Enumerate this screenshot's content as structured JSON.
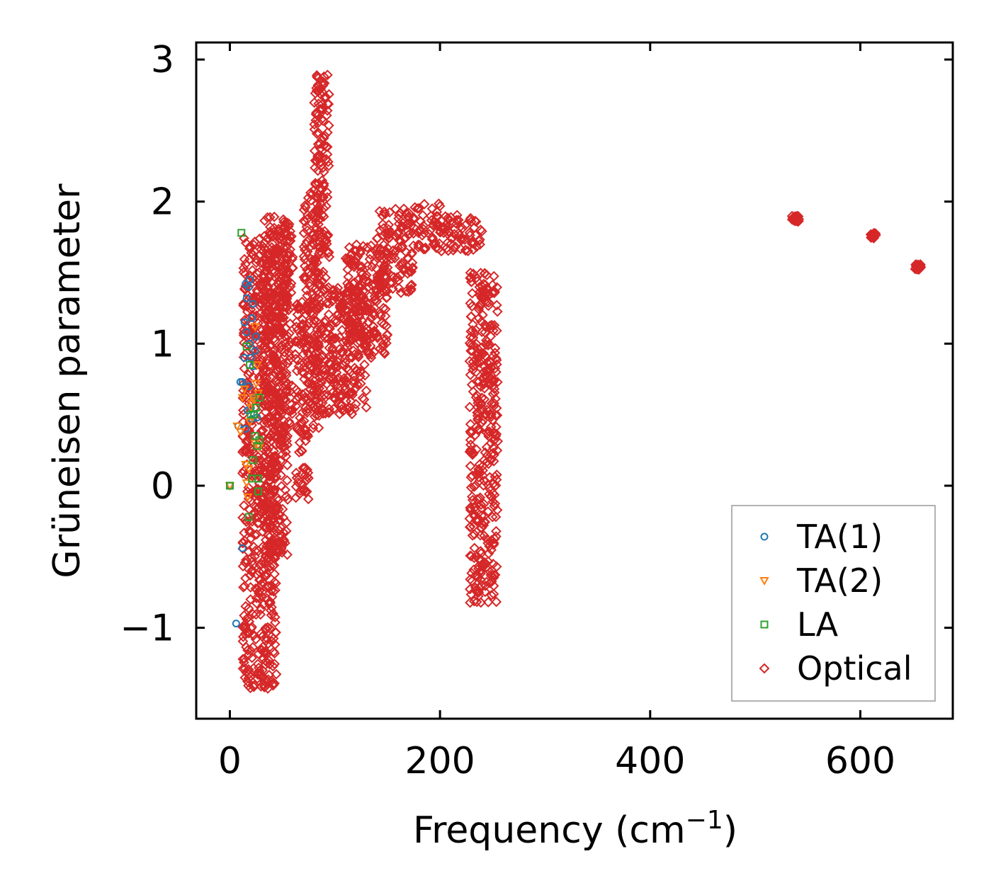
{
  "chart_data": {
    "type": "scatter",
    "title": "",
    "xlabel": "Frequency (cm",
    "xlabel_sup": "−1",
    "xlabel_close": ")",
    "ylabel": "Grüneisen parameter",
    "xlim": [
      -32,
      688
    ],
    "ylim": [
      -1.64,
      3.12
    ],
    "xticks": [
      0,
      200,
      400,
      600
    ],
    "xtick_labels": [
      "0",
      "200",
      "400",
      "600"
    ],
    "yticks": [
      -1,
      0,
      1,
      2,
      3
    ],
    "ytick_labels": [
      "−1",
      "0",
      "1",
      "2",
      "3"
    ],
    "grid": false,
    "legend_position": "bottom-right",
    "series": [
      {
        "name": "TA(1)",
        "marker": "circle",
        "color": "#1f77b4",
        "points": [
          [
            0,
            0
          ],
          [
            6,
            -0.97
          ],
          [
            8,
            0.42
          ],
          [
            10,
            0.73
          ],
          [
            12,
            0.73
          ],
          [
            12,
            -0.44
          ],
          [
            14,
            1.15
          ],
          [
            14,
            0.9
          ],
          [
            15,
            1.42
          ],
          [
            15,
            0.4
          ],
          [
            16,
            1.32
          ],
          [
            16,
            1.08
          ],
          [
            17,
            0.53
          ],
          [
            18,
            1.4
          ],
          [
            18,
            0.7
          ],
          [
            19,
            1.45
          ],
          [
            19,
            1.0
          ],
          [
            20,
            0.9
          ],
          [
            20,
            0.55
          ],
          [
            21,
            1.18
          ],
          [
            21,
            0.47
          ],
          [
            22,
            0.84
          ],
          [
            22,
            1.28
          ],
          [
            23,
            0.5
          ],
          [
            24,
            0.95
          ],
          [
            24,
            0.62
          ],
          [
            25,
            1.05
          ],
          [
            26,
            0.48
          ]
        ]
      },
      {
        "name": "TA(2)",
        "marker": "triangle",
        "color": "#ff7f0e",
        "points": [
          [
            0,
            0
          ],
          [
            7,
            0.42
          ],
          [
            10,
            0.38
          ],
          [
            12,
            0.62
          ],
          [
            14,
            0.68
          ],
          [
            15,
            0.15
          ],
          [
            16,
            0.02
          ],
          [
            17,
            -0.08
          ],
          [
            18,
            0.12
          ],
          [
            19,
            0.45
          ],
          [
            20,
            0.55
          ],
          [
            21,
            0.58
          ],
          [
            22,
            0.62
          ],
          [
            23,
            0.6
          ],
          [
            24,
            1.12
          ],
          [
            24,
            0.3
          ],
          [
            25,
            0.72
          ],
          [
            26,
            0.85
          ],
          [
            27,
            0.65
          ],
          [
            28,
            0.27
          ]
        ]
      },
      {
        "name": "LA",
        "marker": "square",
        "color": "#2ca02c",
        "points": [
          [
            0,
            0
          ],
          [
            11,
            1.78
          ],
          [
            16,
            0.98
          ],
          [
            18,
            -0.22
          ],
          [
            19,
            0.85
          ],
          [
            20,
            0.5
          ],
          [
            21,
            0.05
          ],
          [
            22,
            0.18
          ],
          [
            23,
            0.5
          ],
          [
            24,
            0.35
          ],
          [
            25,
            0.55
          ],
          [
            26,
            0.28
          ],
          [
            27,
            0.05
          ],
          [
            27,
            -0.04
          ],
          [
            28,
            0.62
          ],
          [
            28,
            0.32
          ]
        ]
      },
      {
        "name": "Optical",
        "marker": "diamond",
        "color": "#d62728",
        "points": [],
        "bands": [
          {
            "x": [
              12,
              45
            ],
            "y": [
              -1.43,
              1.77
            ]
          },
          {
            "x": [
              32,
              55
            ],
            "y": [
              -0.5,
              1.9
            ]
          },
          {
            "x": [
              45,
              60
            ],
            "y": [
              0.4,
              1.85
            ]
          },
          {
            "x": [
              62,
              75
            ],
            "y": [
              -0.1,
              1.3
            ]
          },
          {
            "x": [
              70,
              85
            ],
            "y": [
              0.4,
              2.1
            ]
          },
          {
            "x": [
              80,
              95
            ],
            "y": [
              0.5,
              2.9
            ]
          },
          {
            "x": [
              95,
              130
            ],
            "y": [
              0.5,
              1.4
            ]
          },
          {
            "x": [
              110,
              150
            ],
            "y": [
              0.9,
              1.7
            ]
          },
          {
            "x": [
              140,
              175
            ],
            "y": [
              1.35,
              1.95
            ]
          },
          {
            "x": [
              175,
              200
            ],
            "y": [
              1.65,
              1.99
            ]
          },
          {
            "x": [
              200,
              240
            ],
            "y": [
              1.65,
              1.92
            ]
          },
          {
            "x": [
              228,
              255
            ],
            "y": [
              -0.83,
              1.5
            ]
          },
          {
            "x": [
              535,
              542
            ],
            "y": [
              1.86,
              1.9
            ]
          },
          {
            "x": [
              609,
              615
            ],
            "y": [
              1.74,
              1.78
            ]
          },
          {
            "x": [
              652,
              658
            ],
            "y": [
              1.52,
              1.56
            ]
          }
        ]
      }
    ]
  }
}
